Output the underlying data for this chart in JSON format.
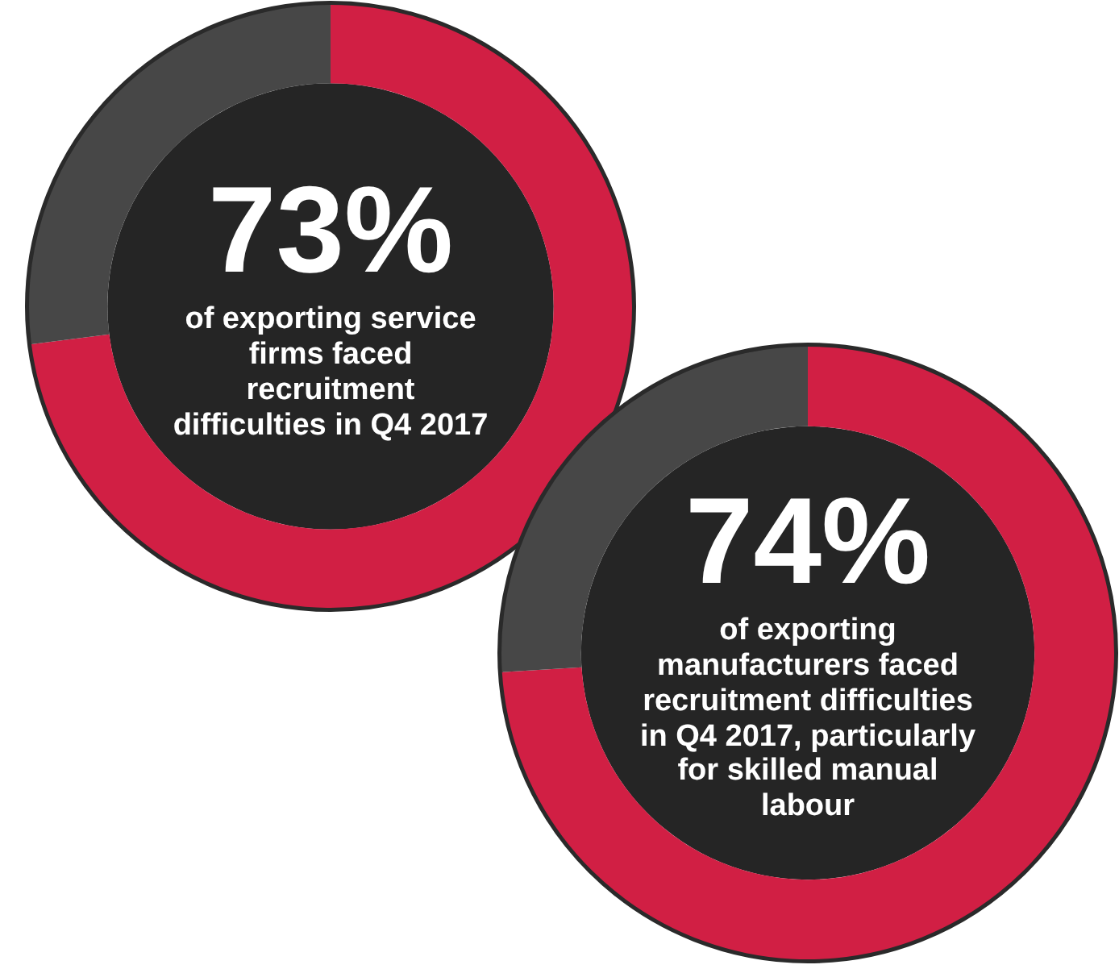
{
  "chart_data": [
    {
      "type": "donut",
      "categories": [
        null,
        null
      ],
      "values": [
        73,
        27
      ],
      "colors": [
        "#d11f44",
        "#474747"
      ],
      "value_labels": [
        "73%",
        null
      ],
      "annotations": [
        "of exporting service firms faced recruitment difficulties in Q4 2017"
      ],
      "legend": false
    },
    {
      "type": "donut",
      "categories": [
        null,
        null
      ],
      "values": [
        74,
        26
      ],
      "colors": [
        "#d11f44",
        "#474747"
      ],
      "value_labels": [
        "74%",
        null
      ],
      "annotations": [
        "of exporting manufacturers faced recruitment difficulties in Q4 2017, particularly for skilled manual labour"
      ],
      "legend": false
    }
  ]
}
